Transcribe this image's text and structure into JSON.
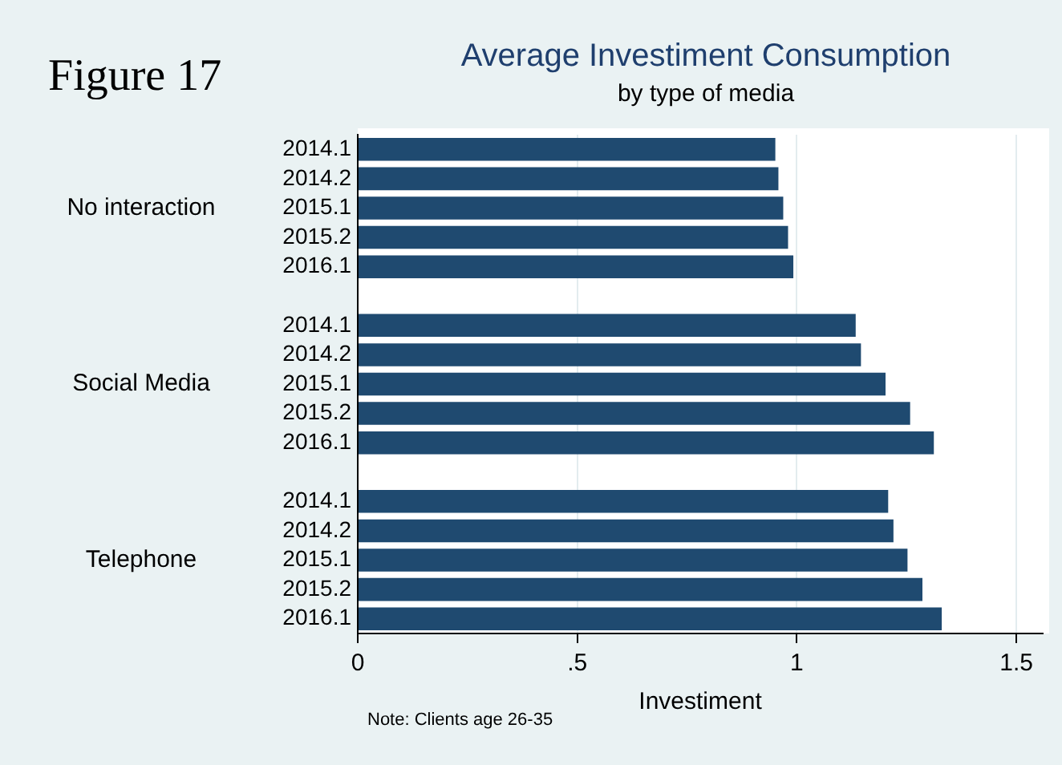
{
  "chart_data": {
    "type": "bar",
    "orientation": "horizontal",
    "title": "Average Investiment Consumption",
    "subtitle": "by type of media",
    "xlabel": "Investiment",
    "categories": [
      "2014.1",
      "2014.2",
      "2015.1",
      "2015.2",
      "2016.1",
      null,
      "2014.1",
      "2014.2",
      "2015.1",
      "2015.2",
      "2016.1",
      null,
      "2014.1",
      "2014.2",
      "2015.1",
      "2015.2",
      "2016.1"
    ],
    "values": [
      0.951,
      0.958,
      0.969,
      0.98,
      0.992,
      null,
      1.134,
      1.146,
      1.202,
      1.258,
      1.312,
      null,
      1.208,
      1.22,
      1.252,
      1.286,
      1.33
    ],
    "color": "#1f4a70",
    "xlim": [
      0,
      1.56
    ],
    "xticks": [
      0,
      {
        "value": 0.5,
        "label": ".5"
      },
      1,
      1.5
    ],
    "grid": "x",
    "annotations": [
      "Figure 17",
      "Note: Clients age 26-35",
      "No interaction",
      "Social Media",
      "Telephone"
    ]
  }
}
